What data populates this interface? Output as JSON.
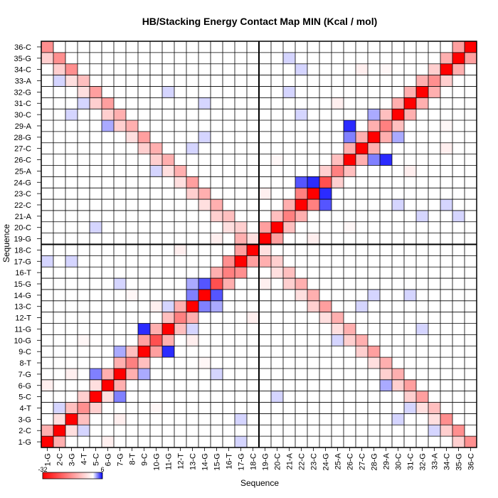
{
  "chart_data": {
    "type": "heatmap",
    "title": "HB/Stacking Energy Contact Map MIN (Kcal / mol)",
    "xlabel": "Sequence",
    "ylabel": "Sequence",
    "labels": [
      "1-G",
      "2-C",
      "3-G",
      "4-T",
      "5-C",
      "6-G",
      "7-G",
      "8-T",
      "9-C",
      "10-G",
      "11-G",
      "12-T",
      "13-C",
      "14-G",
      "15-G",
      "16-T",
      "17-G",
      "18-C",
      "19-G",
      "20-C",
      "21-A",
      "22-C",
      "23-C",
      "24-G",
      "25-A",
      "26-C",
      "27-C",
      "28-G",
      "29-A",
      "30-C",
      "31-C",
      "32-G",
      "33-A",
      "34-C",
      "35-G",
      "36-C"
    ],
    "colorbar": {
      "min": -32,
      "max": 6,
      "min_label": "-32",
      "max_label": "6",
      "low_color": "#ff0000",
      "mid_color": "#ffffff",
      "high_color": "#0000ff"
    },
    "cells": [
      [
        0,
        0,
        -32
      ],
      [
        1,
        1,
        -32
      ],
      [
        2,
        2,
        -32
      ],
      [
        3,
        3,
        -14
      ],
      [
        4,
        4,
        -32
      ],
      [
        5,
        5,
        -32
      ],
      [
        6,
        6,
        -32
      ],
      [
        7,
        7,
        -16
      ],
      [
        8,
        8,
        -32
      ],
      [
        9,
        9,
        -22
      ],
      [
        10,
        10,
        -32
      ],
      [
        11,
        11,
        -16
      ],
      [
        12,
        12,
        -32
      ],
      [
        13,
        13,
        -32
      ],
      [
        14,
        14,
        -22
      ],
      [
        15,
        15,
        -16
      ],
      [
        16,
        16,
        -32
      ],
      [
        17,
        17,
        -32
      ],
      [
        18,
        18,
        -32
      ],
      [
        19,
        19,
        -32
      ],
      [
        20,
        20,
        -16
      ],
      [
        21,
        21,
        -32
      ],
      [
        22,
        22,
        -32
      ],
      [
        23,
        23,
        -22
      ],
      [
        24,
        24,
        -16
      ],
      [
        25,
        25,
        -32
      ],
      [
        26,
        26,
        -32
      ],
      [
        27,
        27,
        -32
      ],
      [
        28,
        28,
        -16
      ],
      [
        29,
        29,
        -32
      ],
      [
        30,
        30,
        -32
      ],
      [
        31,
        31,
        -32
      ],
      [
        32,
        32,
        -14
      ],
      [
        33,
        33,
        -32
      ],
      [
        34,
        34,
        -32
      ],
      [
        35,
        35,
        -32
      ],
      [
        0,
        1,
        -10
      ],
      [
        1,
        0,
        -10
      ],
      [
        1,
        2,
        -4
      ],
      [
        2,
        1,
        -4
      ],
      [
        2,
        3,
        -8
      ],
      [
        3,
        2,
        -8
      ],
      [
        3,
        4,
        -6
      ],
      [
        4,
        3,
        -6
      ],
      [
        4,
        5,
        -4
      ],
      [
        5,
        4,
        -4
      ],
      [
        5,
        6,
        -10
      ],
      [
        6,
        5,
        -10
      ],
      [
        6,
        7,
        -10
      ],
      [
        7,
        6,
        -10
      ],
      [
        7,
        8,
        -8
      ],
      [
        8,
        7,
        -8
      ],
      [
        8,
        9,
        -12
      ],
      [
        9,
        8,
        -12
      ],
      [
        9,
        10,
        -10
      ],
      [
        10,
        9,
        -10
      ],
      [
        10,
        11,
        -8
      ],
      [
        11,
        10,
        -8
      ],
      [
        11,
        12,
        -10
      ],
      [
        12,
        11,
        -10
      ],
      [
        12,
        13,
        -16
      ],
      [
        13,
        12,
        -16
      ],
      [
        13,
        14,
        -10
      ],
      [
        14,
        13,
        -10
      ],
      [
        14,
        15,
        -10
      ],
      [
        15,
        14,
        -10
      ],
      [
        15,
        16,
        -14
      ],
      [
        16,
        15,
        -14
      ],
      [
        16,
        17,
        -12
      ],
      [
        17,
        16,
        -12
      ],
      [
        17,
        18,
        -10
      ],
      [
        18,
        17,
        -10
      ],
      [
        18,
        19,
        -12
      ],
      [
        19,
        18,
        -12
      ],
      [
        19,
        20,
        -8
      ],
      [
        20,
        19,
        -8
      ],
      [
        20,
        21,
        -10
      ],
      [
        21,
        20,
        -10
      ],
      [
        21,
        22,
        -16
      ],
      [
        22,
        21,
        -16
      ],
      [
        22,
        23,
        -14
      ],
      [
        23,
        22,
        -14
      ],
      [
        23,
        24,
        -6
      ],
      [
        24,
        23,
        -6
      ],
      [
        24,
        25,
        -8
      ],
      [
        25,
        24,
        -8
      ],
      [
        25,
        26,
        -10
      ],
      [
        26,
        25,
        -10
      ],
      [
        26,
        27,
        -10
      ],
      [
        27,
        26,
        -10
      ],
      [
        27,
        28,
        -10
      ],
      [
        28,
        27,
        -10
      ],
      [
        28,
        29,
        -8
      ],
      [
        29,
        28,
        -8
      ],
      [
        29,
        30,
        -10
      ],
      [
        30,
        29,
        -10
      ],
      [
        30,
        31,
        -10
      ],
      [
        31,
        30,
        -10
      ],
      [
        31,
        32,
        -10
      ],
      [
        32,
        31,
        -10
      ],
      [
        32,
        33,
        -6
      ],
      [
        33,
        32,
        -6
      ],
      [
        33,
        34,
        -10
      ],
      [
        34,
        33,
        -10
      ],
      [
        34,
        35,
        -12
      ],
      [
        35,
        34,
        -12
      ],
      [
        4,
        6,
        3
      ],
      [
        6,
        4,
        3
      ],
      [
        6,
        8,
        2
      ],
      [
        8,
        6,
        2
      ],
      [
        8,
        10,
        5
      ],
      [
        10,
        8,
        5
      ],
      [
        12,
        14,
        2
      ],
      [
        14,
        12,
        2
      ],
      [
        12,
        13,
        3
      ],
      [
        13,
        12,
        3
      ],
      [
        13,
        14,
        4
      ],
      [
        14,
        13,
        4
      ],
      [
        25,
        28,
        5
      ],
      [
        28,
        25,
        5
      ],
      [
        25,
        27,
        3
      ],
      [
        27,
        25,
        3
      ],
      [
        27,
        29,
        2
      ],
      [
        29,
        27,
        2
      ],
      [
        21,
        23,
        4
      ],
      [
        23,
        21,
        4
      ],
      [
        22,
        23,
        5
      ],
      [
        23,
        22,
        5
      ],
      [
        10,
        12,
        1
      ],
      [
        12,
        10,
        1
      ],
      [
        1,
        3,
        1
      ],
      [
        3,
        1,
        1
      ],
      [
        0,
        35,
        -14
      ],
      [
        35,
        0,
        -14
      ],
      [
        0,
        34,
        -6
      ],
      [
        34,
        0,
        -6
      ],
      [
        1,
        34,
        -14
      ],
      [
        34,
        1,
        -14
      ],
      [
        1,
        33,
        -6
      ],
      [
        33,
        1,
        -6
      ],
      [
        2,
        33,
        -14
      ],
      [
        33,
        2,
        -14
      ],
      [
        2,
        32,
        -4
      ],
      [
        32,
        2,
        -4
      ],
      [
        3,
        32,
        -8
      ],
      [
        32,
        3,
        -8
      ],
      [
        3,
        31,
        -4
      ],
      [
        31,
        3,
        -4
      ],
      [
        4,
        31,
        -12
      ],
      [
        31,
        4,
        -12
      ],
      [
        4,
        30,
        -6
      ],
      [
        30,
        4,
        -6
      ],
      [
        5,
        30,
        -12
      ],
      [
        30,
        5,
        -12
      ],
      [
        5,
        29,
        -6
      ],
      [
        29,
        5,
        -6
      ],
      [
        6,
        29,
        -10
      ],
      [
        29,
        6,
        -10
      ],
      [
        6,
        28,
        -6
      ],
      [
        28,
        6,
        -6
      ],
      [
        7,
        28,
        -10
      ],
      [
        28,
        7,
        -10
      ],
      [
        7,
        27,
        -4
      ],
      [
        27,
        7,
        -4
      ],
      [
        8,
        27,
        -12
      ],
      [
        27,
        8,
        -12
      ],
      [
        8,
        26,
        -6
      ],
      [
        26,
        8,
        -6
      ],
      [
        9,
        26,
        -10
      ],
      [
        26,
        9,
        -10
      ],
      [
        9,
        25,
        -6
      ],
      [
        25,
        9,
        -6
      ],
      [
        10,
        25,
        -10
      ],
      [
        25,
        10,
        -10
      ],
      [
        10,
        24,
        -4
      ],
      [
        24,
        10,
        -4
      ],
      [
        11,
        24,
        -10
      ],
      [
        24,
        11,
        -10
      ],
      [
        11,
        23,
        -4
      ],
      [
        23,
        11,
        -4
      ],
      [
        12,
        23,
        -12
      ],
      [
        23,
        12,
        -12
      ],
      [
        12,
        22,
        -6
      ],
      [
        22,
        12,
        -6
      ],
      [
        13,
        22,
        -10
      ],
      [
        22,
        13,
        -10
      ],
      [
        13,
        21,
        -4
      ],
      [
        21,
        13,
        -4
      ],
      [
        14,
        21,
        -10
      ],
      [
        21,
        14,
        -10
      ],
      [
        14,
        20,
        -6
      ],
      [
        20,
        14,
        -6
      ],
      [
        15,
        20,
        -8
      ],
      [
        20,
        15,
        -8
      ],
      [
        15,
        19,
        -4
      ],
      [
        19,
        15,
        -4
      ],
      [
        16,
        19,
        -6
      ],
      [
        19,
        16,
        -6
      ],
      [
        16,
        18,
        -10
      ],
      [
        18,
        16,
        -10
      ],
      [
        17,
        18,
        -4
      ],
      [
        18,
        17,
        -4
      ],
      [
        1,
        32,
        1
      ],
      [
        32,
        1,
        1
      ],
      [
        3,
        30,
        1
      ],
      [
        30,
        3,
        1
      ],
      [
        5,
        28,
        2
      ],
      [
        28,
        5,
        2
      ],
      [
        9,
        24,
        1
      ],
      [
        24,
        9,
        1
      ],
      [
        12,
        26,
        1
      ],
      [
        26,
        12,
        1
      ],
      [
        13,
        27,
        1
      ],
      [
        27,
        13,
        1
      ],
      [
        2,
        29,
        1
      ],
      [
        29,
        2,
        1
      ],
      [
        0,
        16,
        1
      ],
      [
        16,
        0,
        1
      ],
      [
        16,
        2,
        1
      ],
      [
        2,
        16,
        1
      ],
      [
        20,
        34,
        1
      ],
      [
        34,
        20,
        1
      ],
      [
        21,
        29,
        1
      ],
      [
        29,
        21,
        1
      ],
      [
        31,
        20,
        1
      ],
      [
        20,
        31,
        1
      ],
      [
        33,
        21,
        1
      ],
      [
        21,
        33,
        1
      ],
      [
        30,
        13,
        1
      ],
      [
        13,
        30,
        1
      ],
      [
        6,
        14,
        1
      ],
      [
        14,
        6,
        1
      ],
      [
        4,
        19,
        1
      ],
      [
        19,
        4,
        1
      ],
      [
        10,
        31,
        1
      ],
      [
        31,
        10,
        1
      ],
      [
        0,
        5,
        -2
      ],
      [
        5,
        0,
        -2
      ],
      [
        2,
        6,
        -2
      ],
      [
        6,
        2,
        -2
      ],
      [
        9,
        12,
        -2
      ],
      [
        12,
        9,
        -2
      ],
      [
        18,
        22,
        -2
      ],
      [
        22,
        18,
        -2
      ],
      [
        24,
        30,
        -2
      ],
      [
        30,
        24,
        -2
      ],
      [
        14,
        18,
        -2
      ],
      [
        18,
        14,
        -2
      ],
      [
        3,
        9,
        -1
      ],
      [
        9,
        3,
        -1
      ],
      [
        26,
        33,
        -2
      ],
      [
        33,
        26,
        -2
      ],
      [
        7,
        13,
        -1
      ],
      [
        13,
        7,
        -1
      ],
      [
        19,
        25,
        -1
      ],
      [
        25,
        19,
        -1
      ],
      [
        28,
        33,
        -1
      ],
      [
        33,
        28,
        -1
      ],
      [
        11,
        17,
        -2
      ],
      [
        17,
        11,
        -2
      ]
    ]
  }
}
